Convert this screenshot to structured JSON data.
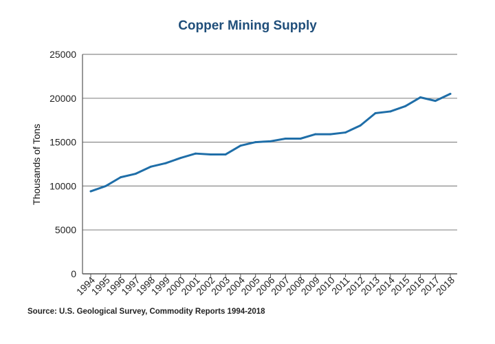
{
  "colors": {
    "title": "#1f4e7a",
    "line": "#1f6ea8",
    "grid": "#8a8a8a",
    "axis": "#555555"
  },
  "source": "Source: U.S. Geological Survey, Commodity Reports 1994-2018",
  "chart_data": {
    "type": "line",
    "title": "Copper Mining Supply",
    "xlabel": "",
    "ylabel": "Thousands of Tons",
    "ylim": [
      0,
      25000
    ],
    "yticks": [
      "0",
      "5000",
      "10000",
      "15000",
      "20000",
      "25000"
    ],
    "grid": true,
    "legend": "none",
    "categories": [
      "1994",
      "1995",
      "1996",
      "1997",
      "1998",
      "1999",
      "2000",
      "2001",
      "2002",
      "2003",
      "2004",
      "2005",
      "2006",
      "2007",
      "2008",
      "2009",
      "2010",
      "2011",
      "2012",
      "2013",
      "2014",
      "2015",
      "2016",
      "2017",
      "2018"
    ],
    "series": [
      {
        "name": "Copper Mining Supply",
        "values": [
          9400,
          10000,
          11000,
          11400,
          12200,
          12600,
          13200,
          13700,
          13600,
          13600,
          14600,
          15000,
          15100,
          15400,
          15400,
          15900,
          15900,
          16100,
          16900,
          18300,
          18500,
          19100,
          20100,
          19700,
          20500
        ]
      }
    ]
  }
}
